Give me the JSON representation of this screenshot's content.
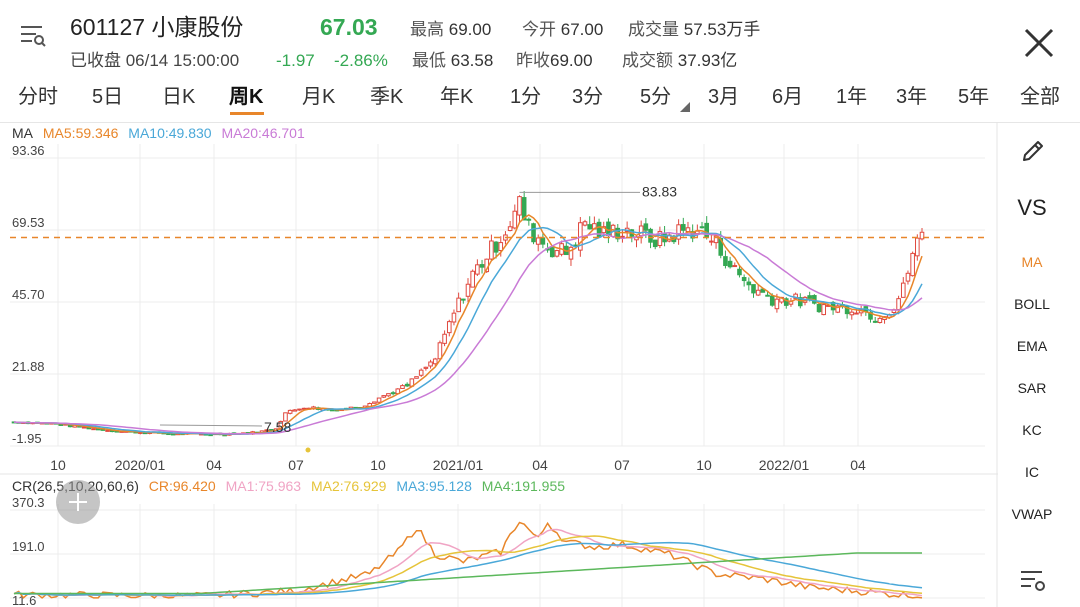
{
  "header": {
    "stock_name": "601127 小康股份",
    "price": "67.03",
    "high_label": "最高",
    "high": "69.00",
    "open_label": "今开",
    "open": "67.00",
    "volume_label": "成交量",
    "volume": "57.53万手",
    "status": "已收盘 06/14 15:00:00",
    "change": "-1.97",
    "change_pct": "-2.86%",
    "low_label": "最低",
    "low": "63.58",
    "prev_close_label": "昨收",
    "prev_close": "69.00",
    "amount_label": "成交额",
    "amount": "37.93亿"
  },
  "tabs": [
    {
      "label": "分时"
    },
    {
      "label": "5日"
    },
    {
      "label": "日K"
    },
    {
      "label": "周K"
    },
    {
      "label": "月K"
    },
    {
      "label": "季K"
    },
    {
      "label": "年K"
    },
    {
      "label": "1分"
    },
    {
      "label": "3分"
    },
    {
      "label": "5分"
    },
    {
      "label": "3月"
    },
    {
      "label": "6月"
    },
    {
      "label": "1年"
    },
    {
      "label": "3年"
    },
    {
      "label": "5年"
    },
    {
      "label": "全部"
    }
  ],
  "active_tab": "周K",
  "ma_legend": {
    "title": "MA",
    "ma5": "MA5:59.346",
    "ma10": "MA10:49.830",
    "ma20": "MA20:46.701"
  },
  "cr_legend": {
    "title": "CR(26,5,10,20,60,6)",
    "cr": "CR:96.420",
    "ma1": "MA1:75.963",
    "ma2": "MA2:76.929",
    "ma3": "MA3:95.128",
    "ma4": "MA4:191.955"
  },
  "colors": {
    "up": "#e0483e",
    "down": "#34a853",
    "ma5": "#e8862a",
    "ma10": "#4aa8d8",
    "ma20": "#c97bd6",
    "cr": "#e8862a",
    "cr_ma1": "#f0a4c4",
    "cr_ma2": "#e6c43a",
    "cr_ma3": "#4aa8d8",
    "cr_ma4": "#5cb85c",
    "ref_line": "#e8862a"
  },
  "sidebar": {
    "items": [
      "VS",
      "MA",
      "BOLL",
      "EMA",
      "SAR",
      "KC",
      "IC",
      "VWAP"
    ]
  },
  "chart_data": [
    {
      "type": "candlestick",
      "y_axis_labels": [
        "93.36",
        "69.53",
        "45.70",
        "21.88",
        "-1.95"
      ],
      "ylim": [
        -1.95,
        93.36
      ],
      "x_tick_labels": [
        "10",
        "2020/01",
        "04",
        "07",
        "10",
        "2021/01",
        "04",
        "07",
        "10",
        "2022/01",
        "04"
      ],
      "annotations": [
        {
          "label": "83.83"
        },
        {
          "label": "7.58"
        }
      ],
      "reference_line": 67.03,
      "series": [
        {
          "name": "MA5"
        },
        {
          "name": "MA10"
        },
        {
          "name": "MA20"
        }
      ]
    },
    {
      "type": "line",
      "y_axis_labels": [
        "370.3",
        "191.0",
        "11.6"
      ],
      "ylim": [
        11.6,
        370.3
      ],
      "series": [
        {
          "name": "CR"
        },
        {
          "name": "MA1"
        },
        {
          "name": "MA2"
        },
        {
          "name": "MA3"
        },
        {
          "name": "MA4"
        }
      ]
    }
  ]
}
